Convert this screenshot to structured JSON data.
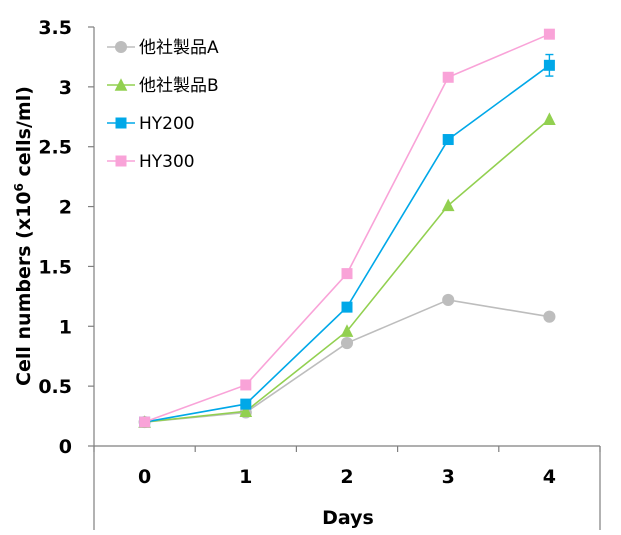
{
  "chart_data": {
    "type": "line",
    "x": [
      0,
      1,
      2,
      3,
      4
    ],
    "xlabel": "Days",
    "ylabel_main": "Cell numbers (x10",
    "ylabel_sup": "6",
    "ylabel_tail": " cells/ml)",
    "xlim": [
      -0.5,
      4.5
    ],
    "ylim": [
      0,
      3.5
    ],
    "xticks": [
      "0",
      "1",
      "2",
      "3",
      "4"
    ],
    "yticks": [
      "0",
      "0.5",
      "1",
      "1.5",
      "2",
      "2.5",
      "3",
      "3.5"
    ],
    "grid": false,
    "legend_position": "top-left",
    "series": [
      {
        "name": "他社製品A",
        "marker": "circle",
        "color": "#bdbdbd",
        "values": [
          0.2,
          0.28,
          0.86,
          1.22,
          1.08
        ]
      },
      {
        "name": "他社製品B",
        "marker": "triangle",
        "color": "#92d050",
        "values": [
          0.2,
          0.29,
          0.96,
          2.01,
          2.73
        ]
      },
      {
        "name": "HY200",
        "marker": "square",
        "color": "#00a8e8",
        "values": [
          0.2,
          0.35,
          1.16,
          2.56,
          3.18
        ],
        "error": [
          0,
          0,
          0,
          0,
          0.09
        ]
      },
      {
        "name": "HY300",
        "marker": "square",
        "color": "#f9a3d8",
        "values": [
          0.2,
          0.51,
          1.44,
          3.08,
          3.44
        ]
      }
    ]
  }
}
